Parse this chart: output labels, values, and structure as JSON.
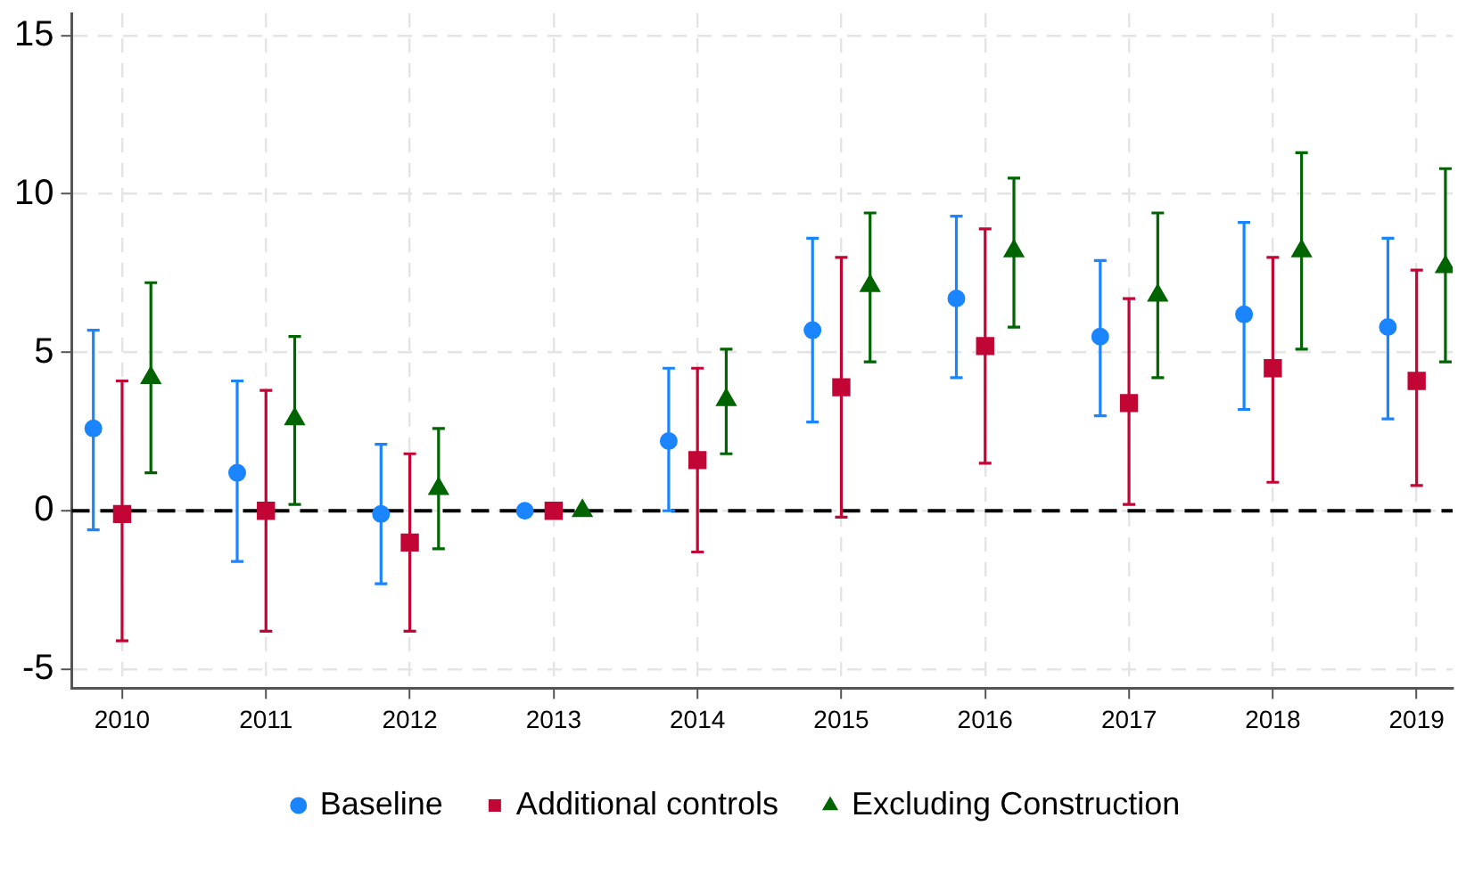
{
  "chart_data": {
    "type": "scatter",
    "xlim": [
      2009.65,
      2019.25
    ],
    "xticks": [
      2010,
      2011,
      2012,
      2013,
      2014,
      2015,
      2016,
      2017,
      2018,
      2019
    ],
    "ylim": [
      -5.6,
      15.7
    ],
    "yticks": [
      -5,
      0,
      5,
      10,
      15
    ],
    "grid": true,
    "legend": "bottom",
    "ref_lines": [
      {
        "axis": "y",
        "value": 0,
        "color": "#000000",
        "line_style": "dashed"
      }
    ],
    "series": [
      {
        "name": "Baseline",
        "color": "#1a85ff",
        "marker": "circle",
        "x": [
          2009.8,
          2010.8,
          2011.8,
          2012.8,
          2013.8,
          2014.8,
          2015.8,
          2016.8,
          2017.8,
          2018.8
        ],
        "values": [
          2.6,
          1.2,
          -0.1,
          0,
          2.2,
          5.7,
          6.7,
          5.5,
          6.2,
          5.8
        ],
        "errors": [
          [
            -0.6,
            5.7
          ],
          [
            -1.6,
            4.1
          ],
          [
            -2.3,
            2.1
          ],
          null,
          [
            0,
            4.5
          ],
          [
            2.8,
            8.6
          ],
          [
            4.2,
            9.3
          ],
          [
            3.0,
            7.9
          ],
          [
            3.2,
            9.1
          ],
          [
            2.9,
            8.6
          ]
        ]
      },
      {
        "name": "Additional controls",
        "color": "#c10534",
        "marker": "square",
        "x": [
          2010,
          2011,
          2012,
          2013,
          2014,
          2015,
          2016,
          2017,
          2018,
          2019
        ],
        "values": [
          -0.1,
          0,
          -1.0,
          0,
          1.6,
          3.9,
          5.2,
          3.4,
          4.5,
          4.1
        ],
        "errors": [
          [
            -4.1,
            4.1
          ],
          [
            -3.8,
            3.8
          ],
          [
            -3.8,
            1.8
          ],
          null,
          [
            -1.3,
            4.5
          ],
          [
            -0.2,
            8.0
          ],
          [
            1.5,
            8.9
          ],
          [
            0.2,
            6.7
          ],
          [
            0.9,
            8.0
          ],
          [
            0.8,
            7.6
          ]
        ]
      },
      {
        "name": "Excluding Construction",
        "color": "#006400",
        "marker": "triangle",
        "x": [
          2010.2,
          2011.2,
          2012.2,
          2013.2,
          2014.2,
          2015.2,
          2016.2,
          2017.2,
          2018.2,
          2019.2
        ],
        "values": [
          4.2,
          2.9,
          0.7,
          0,
          3.5,
          7.1,
          8.2,
          6.8,
          8.2,
          7.7
        ],
        "errors": [
          [
            1.2,
            7.2
          ],
          [
            0.2,
            5.5
          ],
          [
            -1.2,
            2.6
          ],
          null,
          [
            1.8,
            5.1
          ],
          [
            4.7,
            9.4
          ],
          [
            5.8,
            10.5
          ],
          [
            4.2,
            9.4
          ],
          [
            5.1,
            11.3
          ],
          [
            4.7,
            10.8
          ]
        ]
      }
    ]
  }
}
